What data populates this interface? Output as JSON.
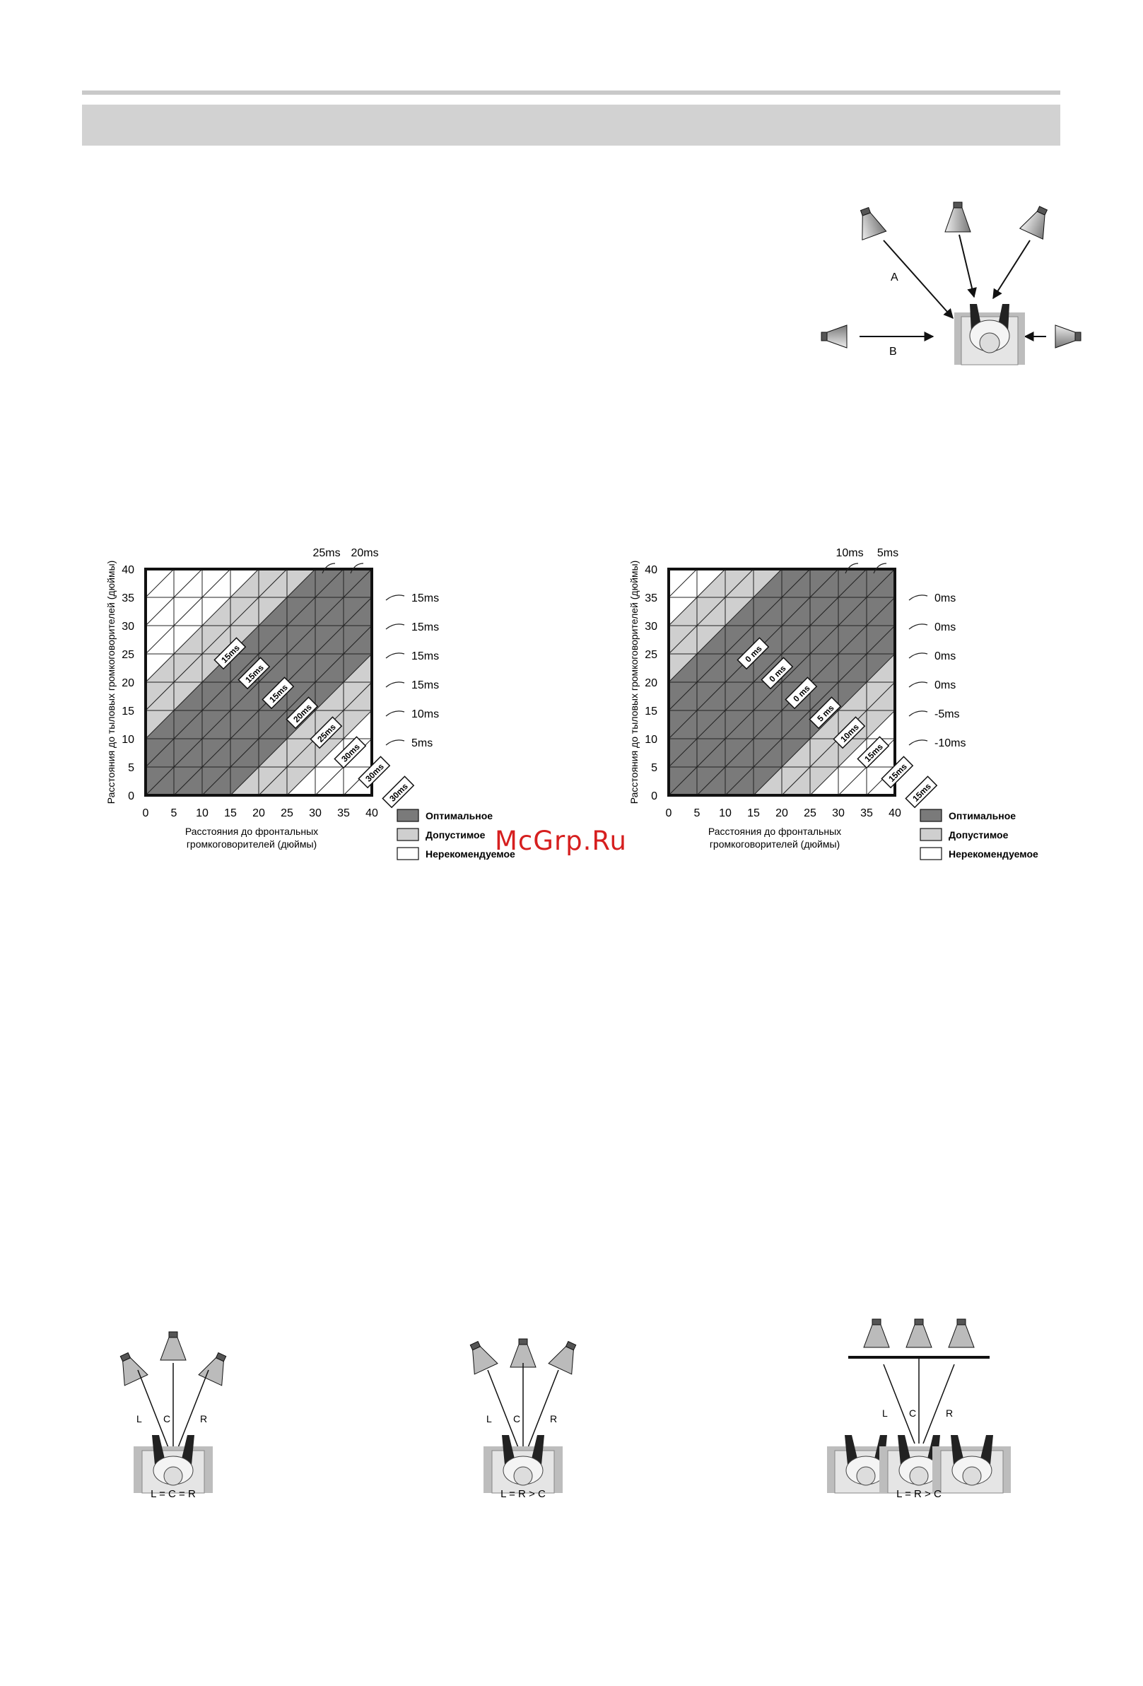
{
  "watermark": "McGrp.Ru",
  "top_diagram": {
    "label_a": "A",
    "label_b": "B"
  },
  "left_chart": {
    "top_labels": [
      "25ms",
      "20ms"
    ],
    "right_labels": [
      "15ms",
      "15ms",
      "15ms",
      "15ms",
      "10ms",
      "5ms"
    ],
    "band_labels": [
      "15ms",
      "15ms",
      "15ms",
      "20ms",
      "25ms",
      "30ms",
      "30ms",
      "30ms"
    ],
    "ylabel": "Расстояния до тыловых громкоговорителей  (дюймы)",
    "xlabel_line1": "Расстояния до фронтальных",
    "xlabel_line2": "громкоговорителей (дюймы)"
  },
  "right_chart": {
    "top_labels": [
      "10ms",
      "5ms"
    ],
    "right_labels": [
      "0ms",
      "0ms",
      "0ms",
      "0ms",
      "-5ms",
      "-10ms"
    ],
    "band_labels": [
      "0 ms",
      "0 ms",
      "0 ms",
      "5 ms",
      "10ms",
      "15ms",
      "15ms",
      "15ms"
    ],
    "ylabel": "Расстояния до тыловых громкоговорителей  (дюймы)",
    "xlabel_line1": "Расстояния до фронтальных",
    "xlabel_line2": "громкоговорителей (дюймы)"
  },
  "axis_ticks": [
    "0",
    "5",
    "10",
    "15",
    "20",
    "25",
    "30",
    "35",
    "40"
  ],
  "legend": {
    "optimal": "Оптимальное",
    "acceptable": "Допустимое",
    "not_recommended": "Нерекомендуемое"
  },
  "colors": {
    "optimal": "#7a7a7a",
    "acceptable": "#cfcfcf",
    "not_recommended": "#ffffff",
    "band": "#d2d2d2"
  },
  "bottom_diagrams": [
    {
      "l": "L",
      "c": "C",
      "r": "R",
      "caption": "L = C = R"
    },
    {
      "l": "L",
      "c": "C",
      "r": "R",
      "caption": "L = R > C"
    },
    {
      "l": "L",
      "c": "C",
      "r": "R",
      "caption": "L = R > C"
    }
  ]
}
